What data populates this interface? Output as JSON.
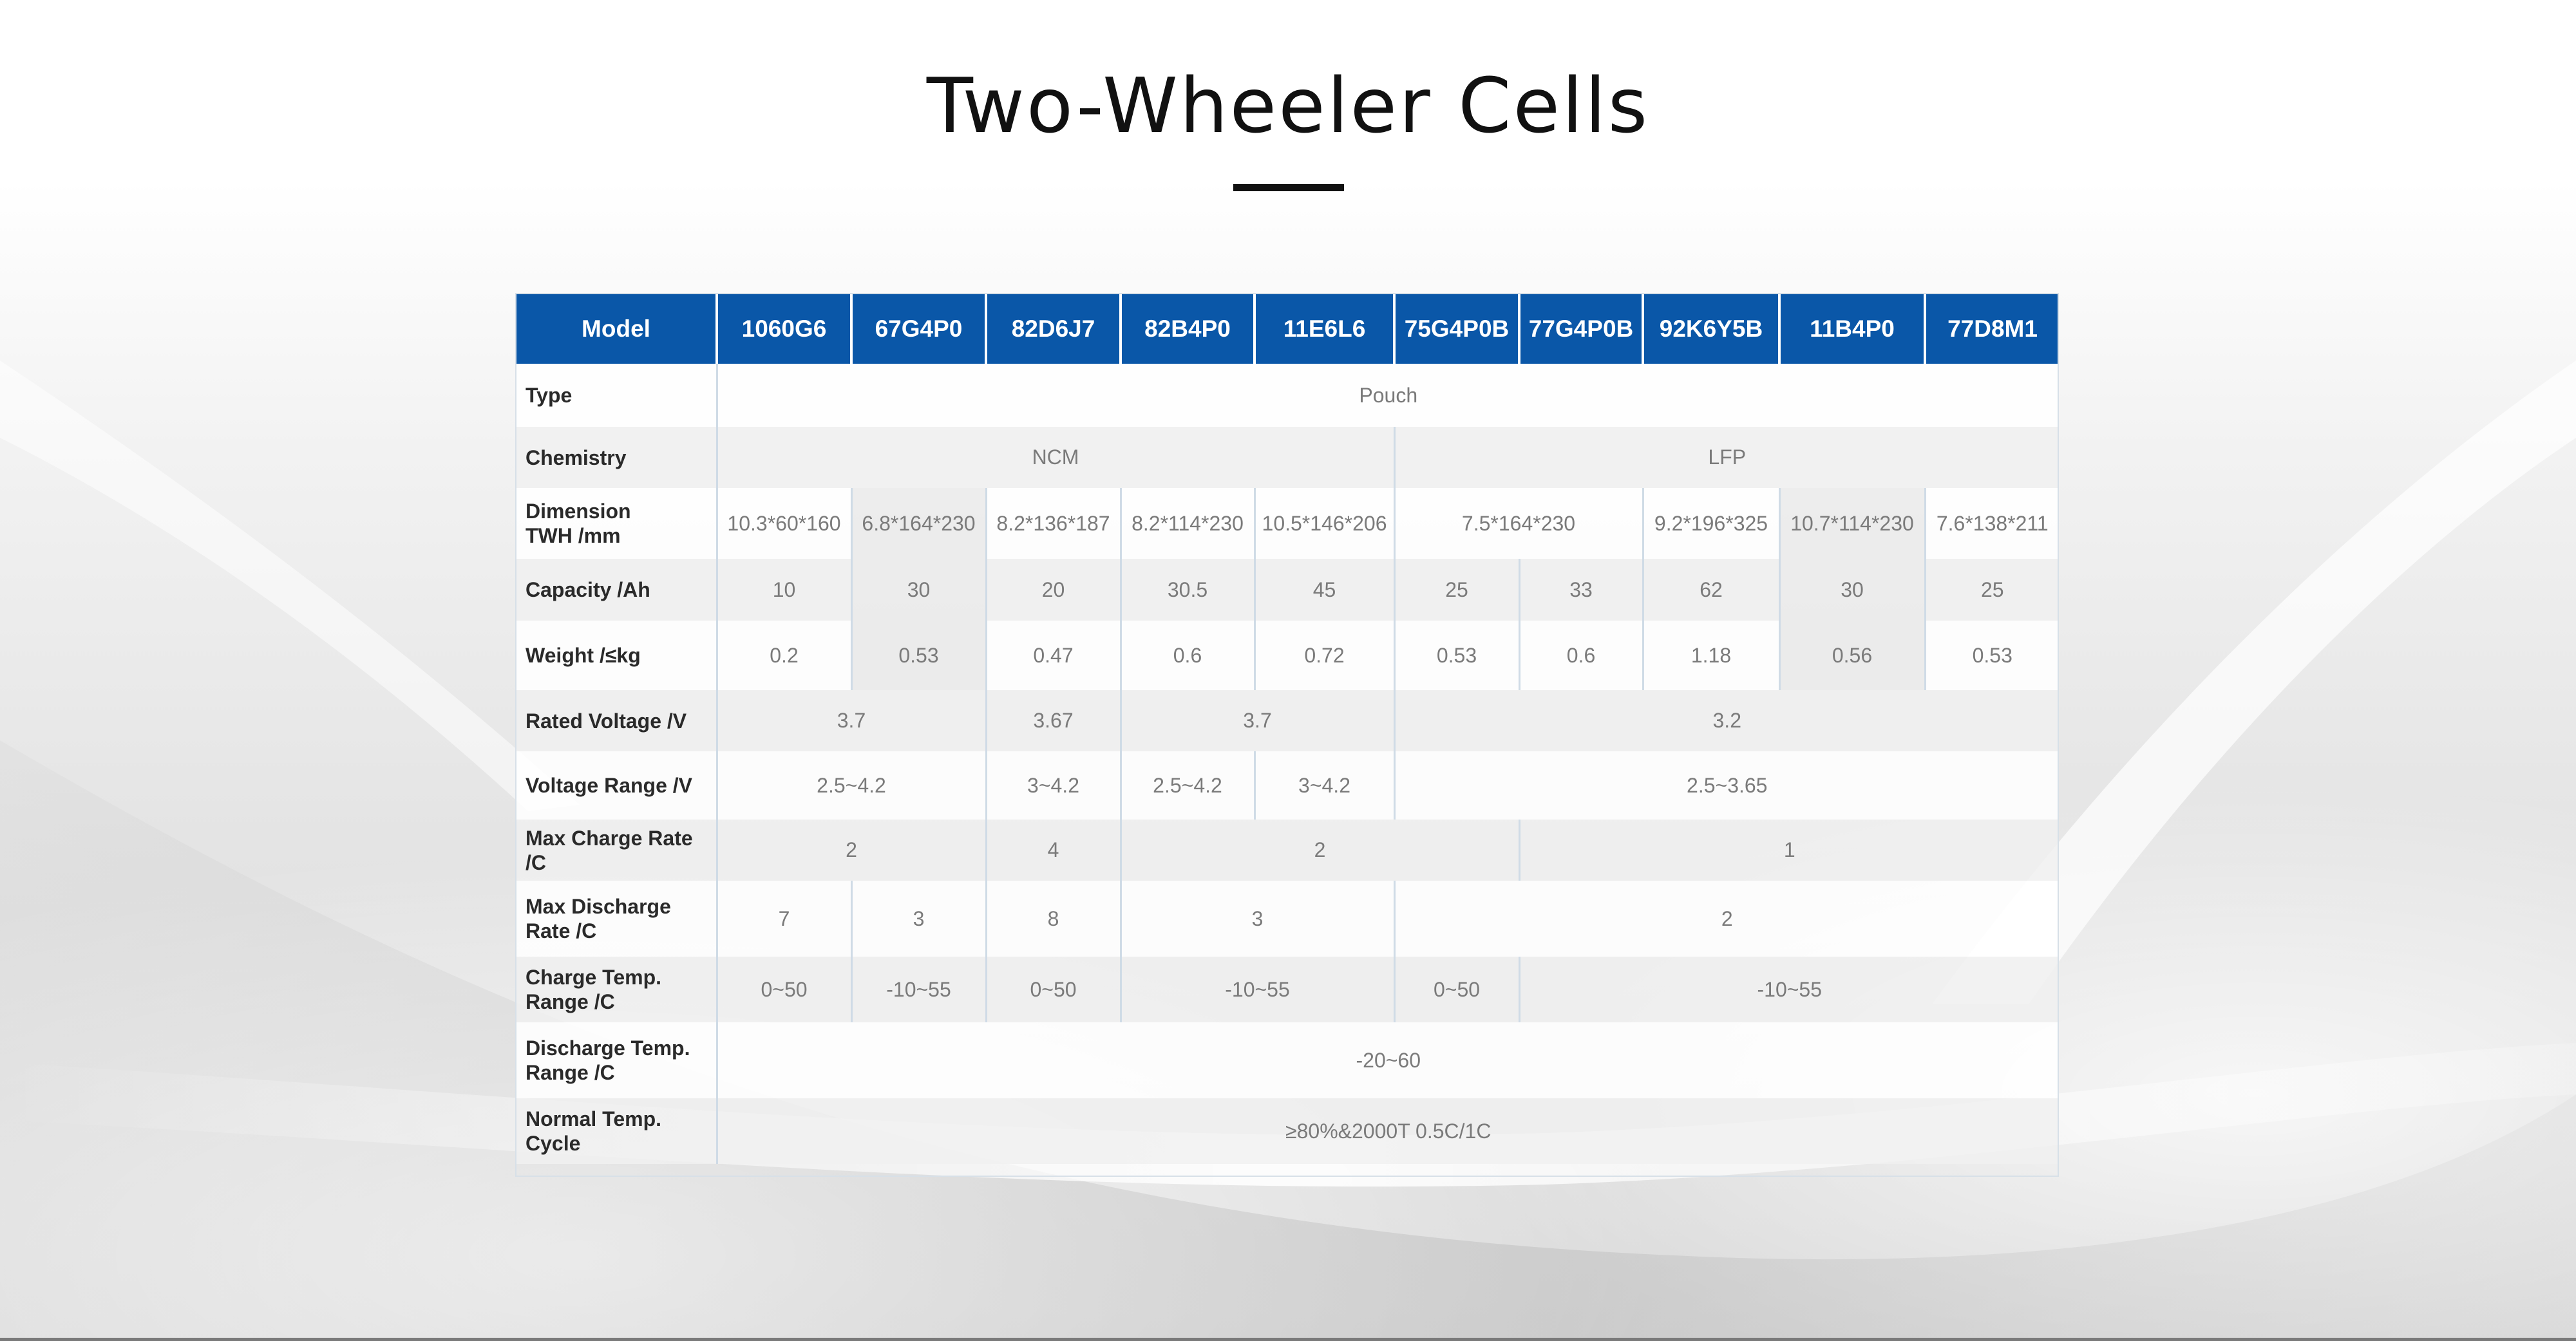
{
  "page": {
    "title": "Two-Wheeler Cells"
  },
  "table": {
    "header": [
      "Model",
      "1060G6",
      "67G4P0",
      "82D6J7",
      "82B4P0",
      "11E6L6",
      "75G4P0B",
      "77G4P0B",
      "92K6Y5B",
      "11B4P0",
      "77D8M1"
    ],
    "rows": [
      {
        "label": "Type",
        "cells": [
          {
            "v": "Pouch",
            "span": 10
          }
        ]
      },
      {
        "label": "Chemistry",
        "cells": [
          {
            "v": "NCM",
            "span": 5
          },
          {
            "v": "LFP",
            "span": 5
          }
        ]
      },
      {
        "label": "Dimension\nTWH /mm",
        "cells": [
          {
            "v": "10.3*60*160",
            "span": 1
          },
          {
            "v": "6.8*164*230",
            "span": 1
          },
          {
            "v": "8.2*136*187",
            "span": 1
          },
          {
            "v": "8.2*114*230",
            "span": 1
          },
          {
            "v": "10.5*146*206",
            "span": 1
          },
          {
            "v": "7.5*164*230",
            "span": 2
          },
          {
            "v": "9.2*196*325",
            "span": 1
          },
          {
            "v": "10.7*114*230",
            "span": 1
          },
          {
            "v": "7.6*138*211",
            "span": 1
          }
        ]
      },
      {
        "label": "Capacity /Ah",
        "cells": [
          {
            "v": "10",
            "span": 1
          },
          {
            "v": "30",
            "span": 1
          },
          {
            "v": "20",
            "span": 1
          },
          {
            "v": "30.5",
            "span": 1
          },
          {
            "v": "45",
            "span": 1
          },
          {
            "v": "25",
            "span": 1
          },
          {
            "v": "33",
            "span": 1
          },
          {
            "v": "62",
            "span": 1
          },
          {
            "v": "30",
            "span": 1
          },
          {
            "v": "25",
            "span": 1
          }
        ]
      },
      {
        "label": "Weight /≤kg",
        "cells": [
          {
            "v": "0.2",
            "span": 1
          },
          {
            "v": "0.53",
            "span": 1
          },
          {
            "v": "0.47",
            "span": 1
          },
          {
            "v": "0.6",
            "span": 1
          },
          {
            "v": "0.72",
            "span": 1
          },
          {
            "v": "0.53",
            "span": 1
          },
          {
            "v": "0.6",
            "span": 1
          },
          {
            "v": "1.18",
            "span": 1
          },
          {
            "v": "0.56",
            "span": 1
          },
          {
            "v": "0.53",
            "span": 1
          }
        ]
      },
      {
        "label": "Rated Voltage /V",
        "cells": [
          {
            "v": "3.7",
            "span": 2
          },
          {
            "v": "3.67",
            "span": 1
          },
          {
            "v": "3.7",
            "span": 2
          },
          {
            "v": "3.2",
            "span": 5
          }
        ]
      },
      {
        "label": "Voltage Range /V",
        "cells": [
          {
            "v": "2.5~4.2",
            "span": 2
          },
          {
            "v": "3~4.2",
            "span": 1
          },
          {
            "v": "2.5~4.2",
            "span": 1
          },
          {
            "v": "3~4.2",
            "span": 1
          },
          {
            "v": "2.5~3.65",
            "span": 5
          }
        ]
      },
      {
        "label": "Max Charge Rate /C",
        "cells": [
          {
            "v": "2",
            "span": 2
          },
          {
            "v": "4",
            "span": 1
          },
          {
            "v": "2",
            "span": 3
          },
          {
            "v": "1",
            "span": 4
          }
        ]
      },
      {
        "label": "Max Discharge\nRate /C",
        "cells": [
          {
            "v": "7",
            "span": 1
          },
          {
            "v": "3",
            "span": 1
          },
          {
            "v": "8",
            "span": 1
          },
          {
            "v": "3",
            "span": 2
          },
          {
            "v": "2",
            "span": 5
          }
        ]
      },
      {
        "label": "Charge Temp.\nRange /C",
        "cells": [
          {
            "v": "0~50",
            "span": 1
          },
          {
            "v": "-10~55",
            "span": 1
          },
          {
            "v": "0~50",
            "span": 1
          },
          {
            "v": "-10~55",
            "span": 2
          },
          {
            "v": "0~50",
            "span": 1
          },
          {
            "v": "-10~55",
            "span": 4
          }
        ]
      },
      {
        "label": "Discharge Temp.\n Range /C",
        "cells": [
          {
            "v": "-20~60",
            "span": 10
          }
        ]
      },
      {
        "label": "Normal Temp.\nCycle",
        "cells": [
          {
            "v": "≥80%&2000T 0.5C/1C",
            "span": 10
          }
        ]
      }
    ]
  },
  "colors": {
    "header_bg": "#0a57a8",
    "header_text": "#ffffff",
    "cell_text": "#7a7a7a",
    "label_text": "#2a2a2a"
  }
}
